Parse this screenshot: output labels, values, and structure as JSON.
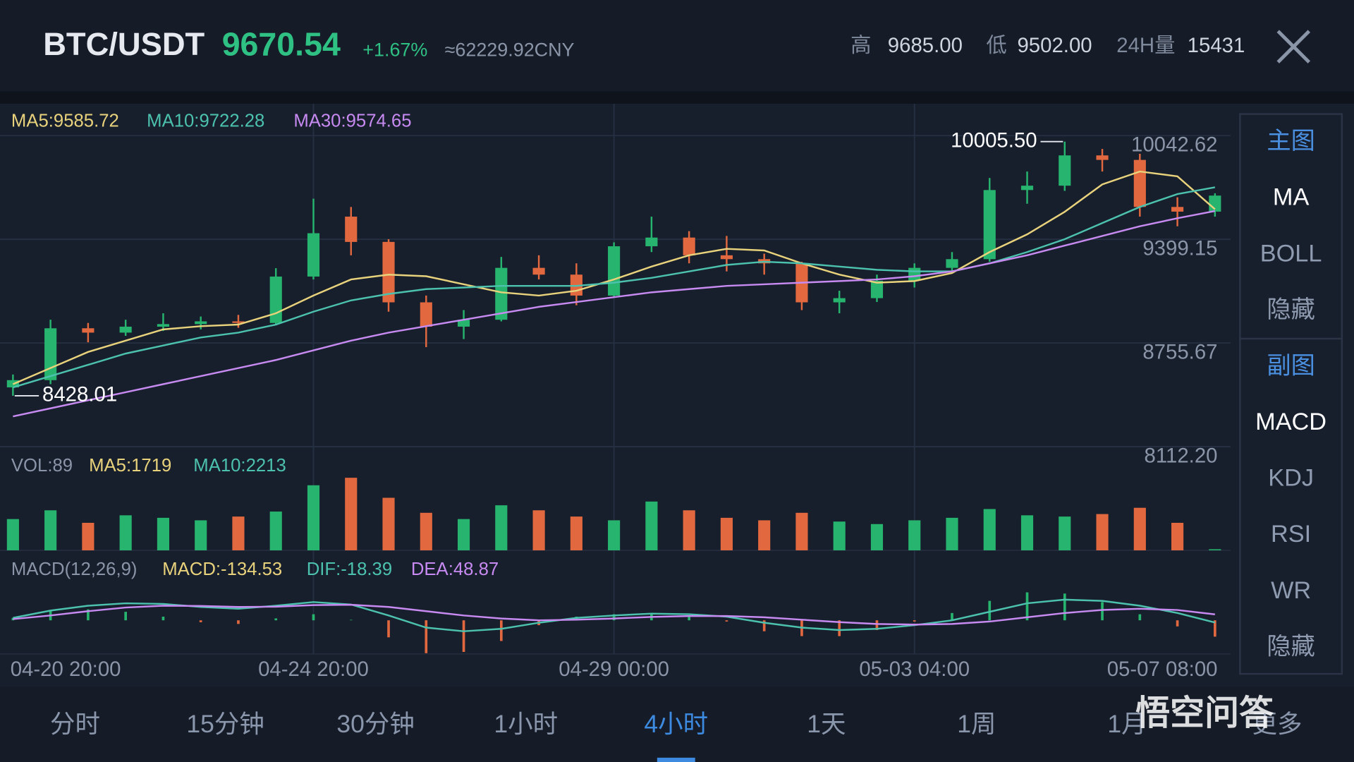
{
  "header": {
    "pair": "BTC/USDT",
    "price": 9670.54,
    "change": "+1.67%",
    "cny": "≈62229.92CNY",
    "stats": [
      {
        "label": "高",
        "value": "9685.00"
      },
      {
        "label": "低",
        "value": "9502.00"
      },
      {
        "label": "24H量",
        "value": "15431"
      }
    ]
  },
  "chart_data": {
    "type": "candlestick",
    "categories": [
      "04-20 20:00",
      null,
      null,
      null,
      null,
      null,
      null,
      null,
      "04-24 20:00",
      null,
      null,
      null,
      null,
      null,
      null,
      null,
      "04-29 00:00",
      null,
      null,
      null,
      null,
      null,
      null,
      null,
      "05-03 04:00",
      null,
      null,
      null,
      null,
      null,
      null,
      null,
      "05-07 08:00"
    ],
    "open": [
      8480,
      8525,
      8847,
      8820,
      8857,
      8873,
      8890,
      8880,
      9168,
      9540,
      9383,
      9008,
      8857,
      8900,
      9222,
      9180,
      9050,
      9356,
      9410,
      9300,
      9276,
      9250,
      9008,
      9034,
      9142,
      9222,
      9276,
      9705,
      9732,
      9920,
      9892,
      9600,
      9571
    ],
    "high": [
      8560,
      8900,
      8880,
      8900,
      8940,
      8920,
      8930,
      9220,
      9651,
      9600,
      9400,
      9050,
      8960,
      9290,
      9300,
      9250,
      9380,
      9540,
      9450,
      9420,
      9310,
      9260,
      9080,
      9180,
      9250,
      9320,
      9780,
      9820,
      10005.5,
      9960,
      9930,
      9660,
      9685
    ],
    "low": [
      8428.01,
      8500,
      8760,
      8800,
      8830,
      8840,
      8850,
      8870,
      9150,
      9300,
      8950,
      8730,
      8780,
      8890,
      9150,
      8990,
      9040,
      9320,
      9250,
      9200,
      9180,
      8960,
      8940,
      9010,
      9100,
      9200,
      9260,
      9620,
      9700,
      9820,
      9540,
      9480,
      9540
    ],
    "close": [
      8525,
      8847,
      8820,
      8857,
      8873,
      8890,
      8880,
      9168,
      9437,
      9383,
      9008,
      8857,
      8900,
      9222,
      9180,
      9050,
      9356,
      9410,
      9300,
      9276,
      9250,
      9008,
      9034,
      9142,
      9222,
      9276,
      9705,
      9732,
      9920,
      9892,
      9600,
      9571,
      9670.54
    ],
    "up_color": "#27b46e",
    "down_color": "#e2683f",
    "ylim": [
      8112.2,
      10042.62
    ],
    "yticks": [
      10042.62,
      9399.15,
      8755.67,
      {
        "value": 8112.2,
        "label": "8112.20"
      }
    ],
    "grid": true,
    "high_label": "10005.50",
    "low_label": "8428.01",
    "ma_series": [
      {
        "label": "MA5:9585.72",
        "color": "#e8d27c",
        "values": [
          8500,
          8600,
          8700,
          8770,
          8840,
          8860,
          8870,
          8940,
          9050,
          9150,
          9180,
          9170,
          9120,
          9070,
          9050,
          9080,
          9150,
          9230,
          9300,
          9340,
          9330,
          9250,
          9180,
          9130,
          9140,
          9190,
          9320,
          9430,
          9570,
          9740,
          9820,
          9790,
          9585.72
        ]
      },
      {
        "label": "MA10:9722.28",
        "color": "#4cc2ae",
        "values": [
          8480,
          8550,
          8620,
          8690,
          8740,
          8790,
          8820,
          8870,
          8950,
          9020,
          9060,
          9090,
          9100,
          9110,
          9110,
          9110,
          9130,
          9160,
          9200,
          9240,
          9260,
          9250,
          9230,
          9210,
          9200,
          9200,
          9250,
          9320,
          9400,
          9500,
          9600,
          9680,
          9722.28
        ]
      },
      {
        "label": "MA30:9574.65",
        "color": "#c68af0",
        "values": [
          8300,
          8350,
          8400,
          8450,
          8500,
          8550,
          8600,
          8650,
          8710,
          8770,
          8820,
          8860,
          8900,
          8940,
          8980,
          9010,
          9040,
          9070,
          9090,
          9110,
          9120,
          9130,
          9140,
          9150,
          9170,
          9200,
          9250,
          9300,
          9360,
          9420,
          9480,
          9530,
          9574.65
        ]
      }
    ],
    "volume": {
      "label": "VOL:89",
      "values": [
        2500,
        3200,
        2200,
        2800,
        2600,
        2400,
        2700,
        3100,
        5200,
        5800,
        4200,
        3000,
        2500,
        3600,
        3200,
        2700,
        2400,
        3900,
        3200,
        2600,
        2400,
        3000,
        2300,
        2100,
        2400,
        2600,
        3300,
        2800,
        2700,
        2900,
        3400,
        2200,
        89
      ],
      "ma_labels": [
        {
          "label": "MA5:1719",
          "color": "#e8d27c"
        },
        {
          "label": "MA10:2213",
          "color": "#4cc2ae"
        }
      ]
    },
    "macd": {
      "label": "MACD(12,26,9)",
      "hist_label": "MACD:-134.53",
      "hist_color": "#e8d27c",
      "hist": [
        20,
        80,
        90,
        70,
        30,
        -16,
        -30,
        16,
        50,
        4,
        -140,
        -270,
        -260,
        -170,
        -40,
        30,
        50,
        54,
        30,
        -10,
        -90,
        -130,
        -130,
        -80,
        -10,
        60,
        160,
        230,
        220,
        150,
        50,
        -50,
        -134.53
      ],
      "lines": [
        {
          "label": "DIF:-18.39",
          "color": "#4cc2ae",
          "values": [
            20,
            80,
            120,
            140,
            135,
            110,
            95,
            120,
            150,
            130,
            40,
            -60,
            -90,
            -70,
            -20,
            20,
            40,
            55,
            50,
            30,
            -20,
            -60,
            -80,
            -70,
            -40,
            0,
            70,
            140,
            170,
            160,
            120,
            60,
            -18.39
          ]
        },
        {
          "label": "DEA:48.87",
          "color": "#c68af0",
          "values": [
            10,
            40,
            75,
            105,
            120,
            118,
            110,
            112,
            125,
            128,
            110,
            75,
            40,
            15,
            0,
            5,
            15,
            28,
            35,
            35,
            25,
            5,
            -15,
            -30,
            -35,
            -30,
            -10,
            25,
            60,
            85,
            95,
            85,
            48.87
          ]
        }
      ]
    }
  },
  "sidebar": {
    "main": {
      "title": "主图",
      "items": [
        "MA",
        "BOLL",
        "隐藏"
      ],
      "active": 0
    },
    "sub": {
      "title": "副图",
      "items": [
        "MACD",
        "KDJ",
        "RSI",
        "WR",
        "隐藏"
      ],
      "active": 0
    }
  },
  "timeframes": {
    "items": [
      "分时",
      "15分钟",
      "30分钟",
      "1小时",
      "4小时",
      "1天",
      "1周",
      "1月",
      "更多"
    ],
    "active": 4
  },
  "watermark": "悟空问答"
}
